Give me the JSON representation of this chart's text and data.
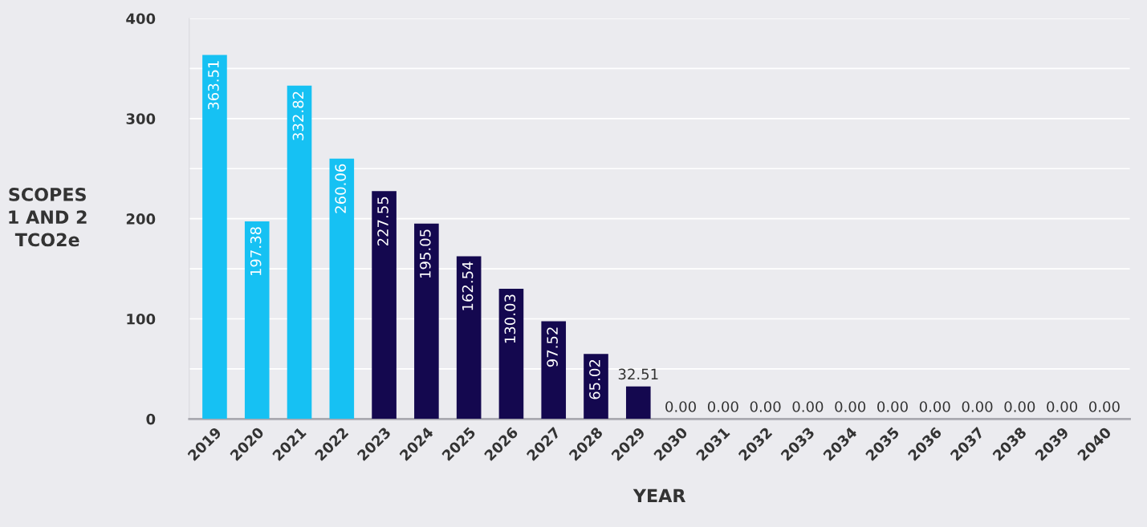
{
  "chart_data": {
    "type": "bar",
    "xlabel": "YEAR",
    "ylabel": "SCOPES\n1 AND 2\nTCO2e",
    "categories": [
      "2019",
      "2020",
      "2021",
      "2022",
      "2023",
      "2024",
      "2025",
      "2026",
      "2027",
      "2028",
      "2029",
      "2030",
      "2031",
      "2032",
      "2033",
      "2034",
      "2035",
      "2036",
      "2037",
      "2038",
      "2039",
      "2040"
    ],
    "values": [
      363.51,
      197.38,
      332.82,
      260.06,
      227.55,
      195.05,
      162.54,
      130.03,
      97.52,
      65.02,
      32.51,
      0.0,
      0.0,
      0.0,
      0.0,
      0.0,
      0.0,
      0.0,
      0.0,
      0.0,
      0.0,
      0.0
    ],
    "colors": [
      "#16c1f3",
      "#16c1f3",
      "#16c1f3",
      "#16c1f3",
      "#14084f",
      "#14084f",
      "#14084f",
      "#14084f",
      "#14084f",
      "#14084f",
      "#14084f",
      "#14084f",
      "#14084f",
      "#14084f",
      "#14084f",
      "#14084f",
      "#14084f",
      "#14084f",
      "#14084f",
      "#14084f",
      "#14084f",
      "#14084f"
    ],
    "ylim": [
      0,
      400
    ],
    "yticks": [
      0,
      {
        "value": 50,
        "label": null
      },
      100,
      {
        "value": 150,
        "label": null
      },
      200,
      {
        "value": 250,
        "label": null
      },
      300,
      {
        "value": 350,
        "label": null
      },
      400
    ],
    "grid": "y",
    "value_labels": [
      "363.51",
      "197.38",
      "332.82",
      "260.06",
      "227.55",
      "195.05",
      "162.54",
      "130.03",
      "97.52",
      "65.02",
      "32.51",
      "0.00",
      "0.00",
      "0.00",
      "0.00",
      "0.00",
      "0.00",
      "0.00",
      "0.00",
      "0.00",
      "0.00",
      "0.00"
    ]
  }
}
